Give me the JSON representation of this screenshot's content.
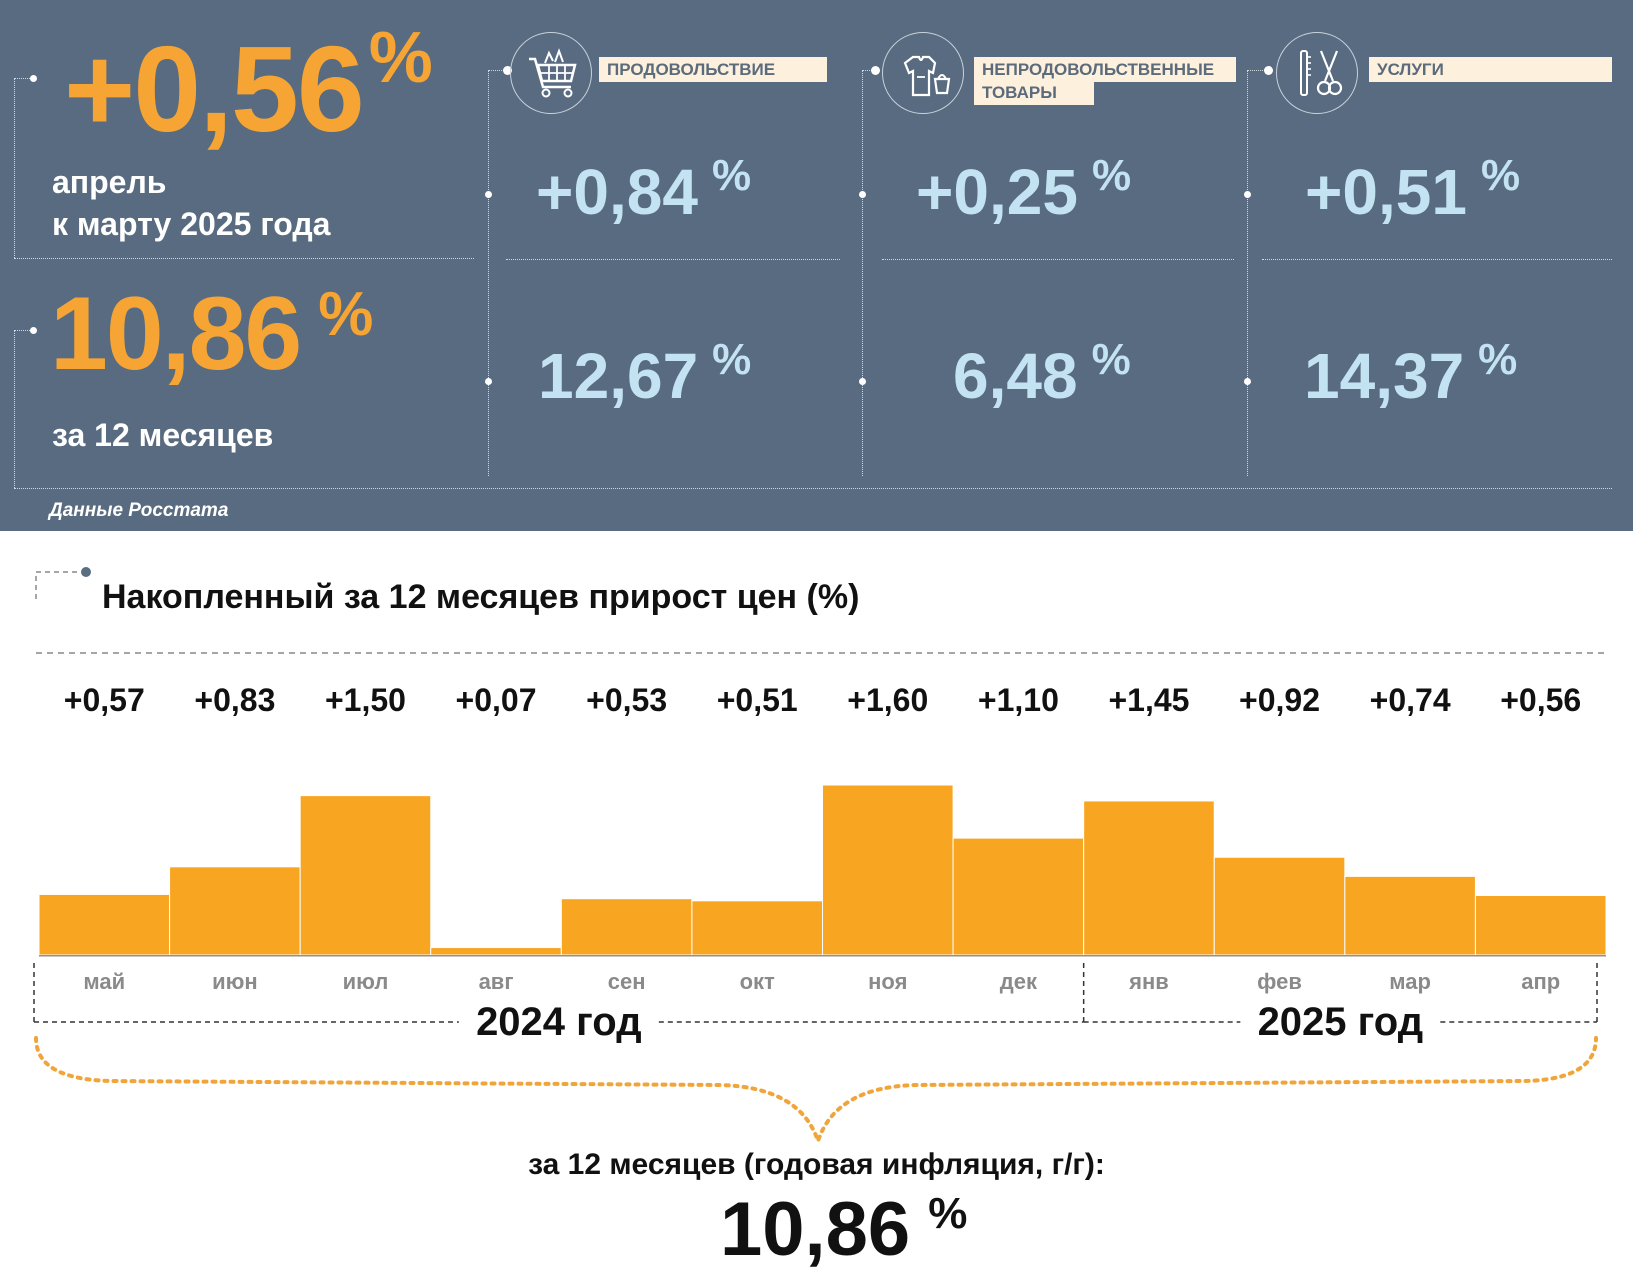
{
  "summary": {
    "mom_value": "+0,56",
    "mom_unit": "%",
    "mom_caption_line1": "апрель",
    "mom_caption_line2": "к марту 2025 года",
    "yoy_value": "10,86",
    "yoy_unit": "%",
    "yoy_caption": "за 12 месяцев",
    "accent_color": "#f6a534"
  },
  "categories": [
    {
      "label_lines": [
        "ПРОДОВОЛЬСТВИЕ"
      ],
      "icon": "shopping-cart-icon",
      "mom": "+0,84",
      "yoy": "12,67",
      "unit": "%"
    },
    {
      "label_lines": [
        "НЕПРОДОВОЛЬСТВЕННЫЕ",
        "ТОВАРЫ"
      ],
      "icon": "clothing-bag-icon",
      "mom": "+0,25",
      "yoy": "6,48",
      "unit": "%"
    },
    {
      "label_lines": [
        "УСЛУГИ"
      ],
      "icon": "scissors-comb-icon",
      "mom": "+0,51",
      "yoy": "14,37",
      "unit": "%"
    }
  ],
  "source_note": "Данные Росстата",
  "chart_title": "Накопленный за 12 месяцев прирост цен (%)",
  "chart_data": {
    "type": "bar",
    "title": "Накопленный за 12 месяцев прирост цен (%)",
    "categories": [
      "май",
      "июн",
      "июл",
      "авг",
      "сен",
      "окт",
      "ноя",
      "дек",
      "янв",
      "фев",
      "мар",
      "апр"
    ],
    "values": [
      0.57,
      0.83,
      1.5,
      0.07,
      0.53,
      0.51,
      1.6,
      1.1,
      1.45,
      0.92,
      0.74,
      0.56
    ],
    "value_labels": [
      "+0,57",
      "+0,83",
      "+1,50",
      "+0,07",
      "+0,53",
      "+0,51",
      "+1,60",
      "+1,10",
      "+1,45",
      "+0,92",
      "+0,74",
      "+0,56"
    ],
    "groups": [
      {
        "label": "2024 год",
        "from": 0,
        "to": 7
      },
      {
        "label": "2025 год",
        "from": 8,
        "to": 11
      }
    ],
    "bar_color": "#f8a522",
    "ylim": [
      0,
      1.6
    ],
    "grid": false,
    "legend": "none"
  },
  "annual": {
    "caption": "за 12 месяцев (годовая инфляция, г/г):",
    "value": "10,86",
    "unit": "%"
  }
}
